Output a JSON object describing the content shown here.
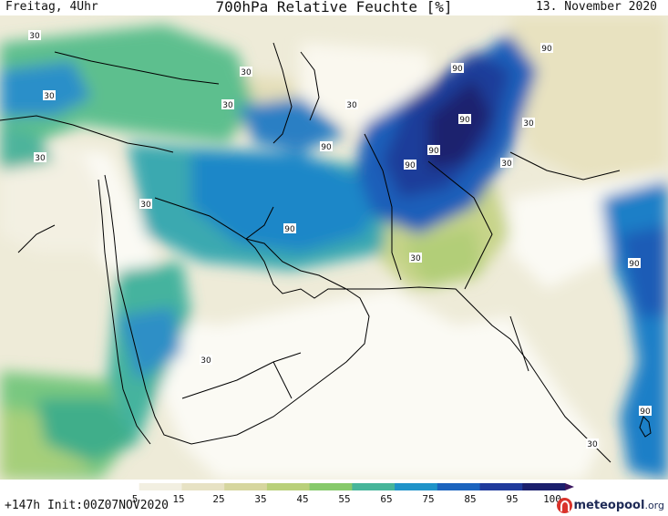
{
  "header": {
    "left": "Freitag, 4Uhr",
    "title": "700hPa Relative Feuchte [%]",
    "date": "13. November 2020"
  },
  "footer": {
    "run": "+147h Init:00Z07NOV2020",
    "brand_name": "meteopool",
    "brand_tld": ".org"
  },
  "legend": {
    "ticks": [
      "5",
      "15",
      "25",
      "35",
      "45",
      "55",
      "65",
      "75",
      "85",
      "95",
      "100"
    ],
    "colors": [
      "#ffffff",
      "#f2efe1",
      "#e7e2c4",
      "#d6d69f",
      "#b9d07a",
      "#86c96b",
      "#46b59a",
      "#1f93c9",
      "#1b63be",
      "#1f3a9c",
      "#1a1f6e",
      "#3a1660"
    ]
  },
  "contour_labels": [
    "30",
    "30",
    "30",
    "30",
    "30",
    "30",
    "30",
    "30",
    "30",
    "30",
    "30",
    "30",
    "90",
    "90",
    "90",
    "90",
    "90",
    "90",
    "90",
    "90",
    "90"
  ],
  "colors": {
    "land_border": "#000000"
  }
}
